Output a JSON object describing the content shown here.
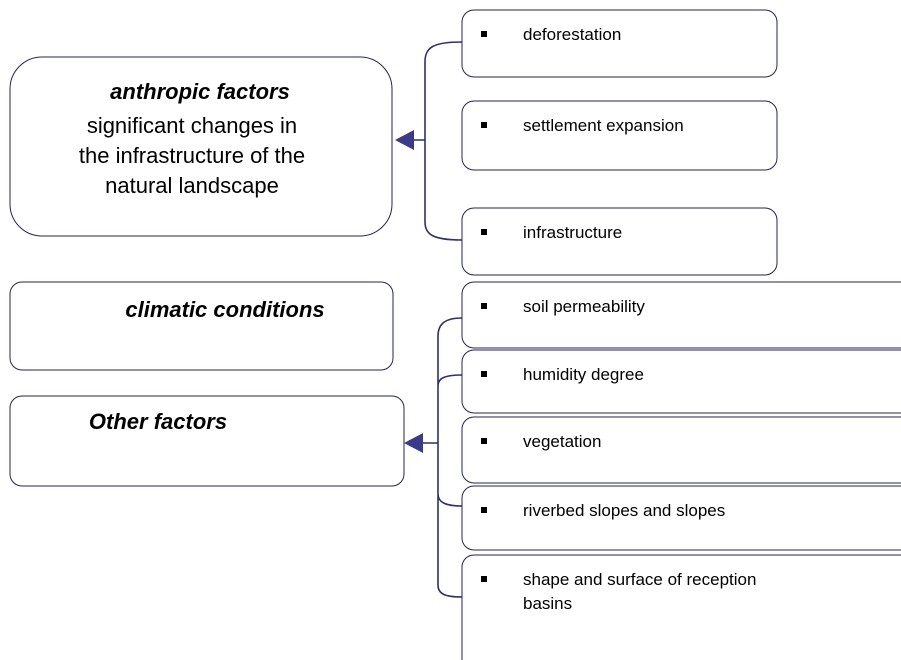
{
  "left_boxes": [
    {
      "title": "anthropic factors",
      "lines": [
        "significant changes in",
        "the infrastructure of the",
        "natural landscape"
      ]
    },
    {
      "title": "climatic conditions"
    },
    {
      "title": "Other factors"
    }
  ],
  "top_group": {
    "items": [
      "deforestation",
      "settlement expansion",
      "infrastructure"
    ]
  },
  "bottom_group": {
    "items": [
      "soil permeability",
      "humidity degree",
      "vegetation",
      "riverbed slopes and slopes",
      [
        "shape and surface of reception",
        "basins"
      ]
    ]
  }
}
